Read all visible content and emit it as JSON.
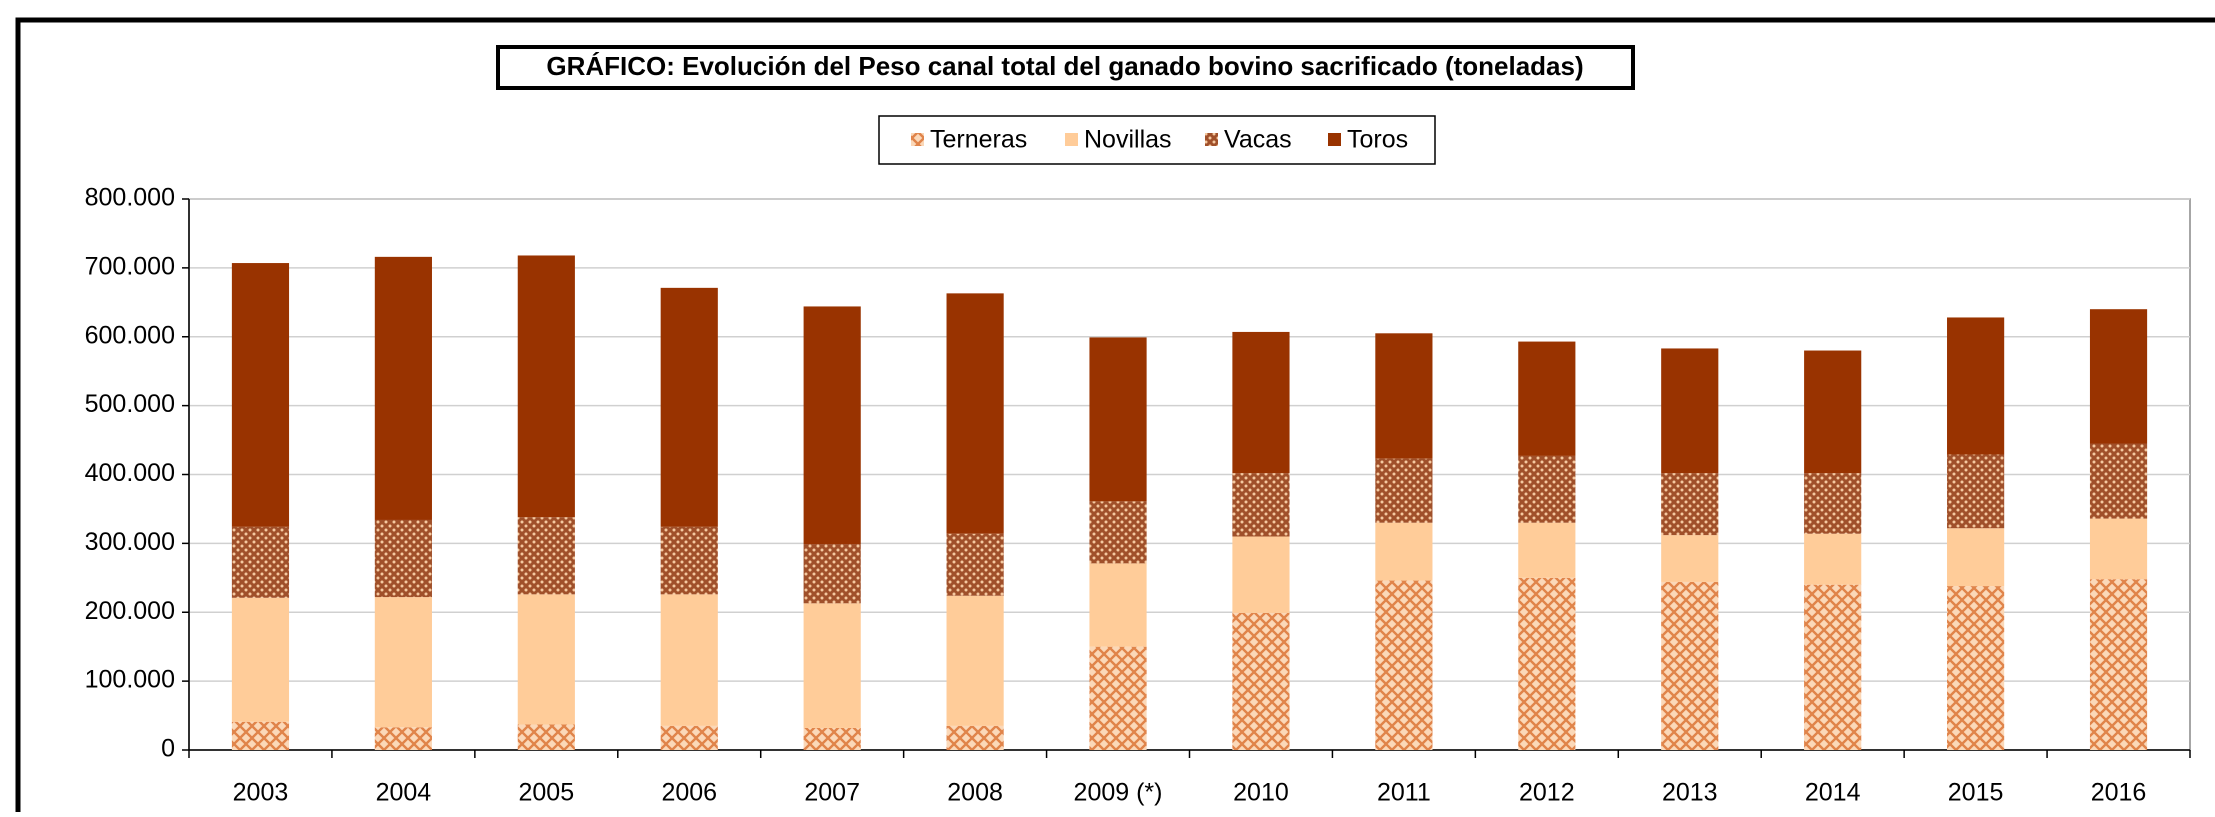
{
  "chart_data": {
    "type": "stacked_bar",
    "title": "GRÁFICO: Evolución del Peso canal total del ganado bovino sacrificado (toneladas)",
    "categories": [
      "2003",
      "2004",
      "2005",
      "2006",
      "2007",
      "2008",
      "2009 (*)",
      "2010",
      "2011",
      "2012",
      "2013",
      "2014",
      "2015",
      "2016"
    ],
    "series": [
      {
        "name": "Terneras",
        "color": "#e0844a",
        "pattern": "crosshatch",
        "values": [
          41000,
          33000,
          37000,
          35000,
          32000,
          35000,
          150000,
          199000,
          246000,
          250000,
          244000,
          240000,
          238000,
          248000
        ]
      },
      {
        "name": "Novillas",
        "color": "#ffcc99",
        "values": [
          180000,
          189000,
          189000,
          191000,
          181000,
          189000,
          121000,
          111000,
          84000,
          80000,
          68000,
          74000,
          84000,
          88000
        ]
      },
      {
        "name": "Vacas",
        "color": "#a0502a",
        "pattern": "dots",
        "values": [
          103000,
          112000,
          112000,
          98000,
          86000,
          90000,
          90000,
          92000,
          93000,
          97000,
          90000,
          88000,
          107000,
          109000
        ]
      },
      {
        "name": "Toros",
        "color": "#993300",
        "values": [
          383000,
          382000,
          380000,
          347000,
          345000,
          349000,
          238000,
          205000,
          182000,
          166000,
          181000,
          178000,
          199000,
          195000
        ]
      }
    ],
    "ylim": [
      0,
      800000
    ],
    "yticks": [
      0,
      {
        "value": 100000,
        "label": "100.000"
      },
      {
        "value": 200000,
        "label": "200.000"
      },
      {
        "value": 300000,
        "label": "300.000"
      },
      {
        "value": 400000,
        "label": "400.000"
      },
      {
        "value": 500000,
        "label": "500.000"
      },
      {
        "value": 600000,
        "label": "600.000"
      },
      {
        "value": 700000,
        "label": "700.000"
      },
      {
        "value": 800000,
        "label": "800.000"
      }
    ],
    "grid": true,
    "legend": "top"
  }
}
